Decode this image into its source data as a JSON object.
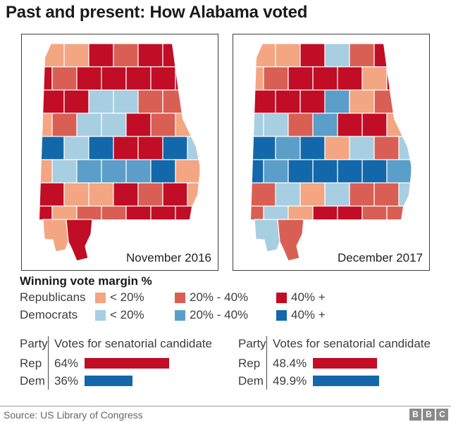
{
  "title": "Past and present: How Alabama voted",
  "palette": {
    "R1": "#f4a582",
    "R2": "#d95f54",
    "R3": "#c10d25",
    "D1": "#a8cee2",
    "D2": "#5b9ec9",
    "D3": "#1268ab"
  },
  "maps": [
    {
      "label": "November 2016",
      "mobile": "R1",
      "baldwin": "R3",
      "grid": [
        [
          "R1",
          "R1",
          "R3",
          "R2",
          "R3",
          "R3",
          "R3"
        ],
        [
          "R3",
          "R2",
          "R3",
          "R3",
          "R3",
          "R3",
          "R3"
        ],
        [
          "R3",
          "R3",
          "D1",
          "D1",
          "R2",
          "R2",
          "R3"
        ],
        [
          "R1",
          "R2",
          "D1",
          "D1",
          "R3",
          "R2",
          "R1"
        ],
        [
          "D3",
          "D1",
          "D3",
          "R3",
          "R3",
          "D3",
          "D1"
        ],
        [
          "R1",
          "D1",
          "D2",
          "D2",
          "D2",
          "D3",
          "R1"
        ],
        [
          "R3",
          "R1",
          "R1",
          "R3",
          "R2",
          "R3",
          "R1"
        ],
        [
          "R3",
          "R1",
          "R2",
          "R2",
          "R3",
          "R3",
          "R3"
        ]
      ]
    },
    {
      "label": "December 2017",
      "mobile": "D1",
      "baldwin": "R2",
      "grid": [
        [
          "R1",
          "R1",
          "R3",
          "D1",
          "R2",
          "R3",
          "R3"
        ],
        [
          "R1",
          "R2",
          "R3",
          "R3",
          "R3",
          "R1",
          "R3"
        ],
        [
          "R3",
          "R3",
          "R3",
          "D2",
          "R1",
          "R2",
          "R3"
        ],
        [
          "D1",
          "D1",
          "R2",
          "D2",
          "R3",
          "R3",
          "R1"
        ],
        [
          "D3",
          "D2",
          "D3",
          "R1",
          "D1",
          "R2",
          "D1"
        ],
        [
          "D3",
          "D2",
          "D3",
          "D3",
          "D3",
          "D3",
          "D2"
        ],
        [
          "R2",
          "D1",
          "R1",
          "D1",
          "R2",
          "R2",
          "D1"
        ],
        [
          "R2",
          "D1",
          "R1",
          "R3",
          "R3",
          "R2",
          "R2"
        ]
      ]
    }
  ],
  "legend": {
    "title": "Winning vote margin %",
    "rows": [
      {
        "party": "Republicans",
        "items": [
          {
            "code": "R1",
            "label": "< 20%"
          },
          {
            "code": "R2",
            "label": "20% - 40%"
          },
          {
            "code": "R3",
            "label": "40% +"
          }
        ]
      },
      {
        "party": "Democrats",
        "items": [
          {
            "code": "D1",
            "label": "< 20%"
          },
          {
            "code": "D2",
            "label": "20% - 40%"
          },
          {
            "code": "D3",
            "label": "40% +"
          }
        ]
      }
    ]
  },
  "tables": [
    {
      "header_party": "Party",
      "header_votes": "Votes for senatorial candidate",
      "rows": [
        {
          "party": "Rep",
          "value": "64%",
          "pct": 64,
          "color": "#c10d25"
        },
        {
          "party": "Dem",
          "value": "36%",
          "pct": 36,
          "color": "#1268ab"
        }
      ]
    },
    {
      "header_party": "Party",
      "header_votes": "Votes for senatorial candidate",
      "rows": [
        {
          "party": "Rep",
          "value": "48.4%",
          "pct": 48.4,
          "color": "#c10d25"
        },
        {
          "party": "Dem",
          "value": "49.9%",
          "pct": 49.9,
          "color": "#1268ab"
        }
      ]
    }
  ],
  "chart_data": [
    {
      "type": "bar",
      "orientation": "horizontal",
      "title": "Votes for senatorial candidate — November 2016",
      "categories": [
        "Rep",
        "Dem"
      ],
      "values": [
        64,
        36
      ],
      "value_labels": [
        "64%",
        "36%"
      ],
      "colors": [
        "#c10d25",
        "#1268ab"
      ],
      "xlim": [
        0,
        100
      ]
    },
    {
      "type": "bar",
      "orientation": "horizontal",
      "title": "Votes for senatorial candidate — December 2017",
      "categories": [
        "Rep",
        "Dem"
      ],
      "values": [
        48.4,
        49.9
      ],
      "value_labels": [
        "48.4%",
        "49.9%"
      ],
      "colors": [
        "#c10d25",
        "#1268ab"
      ],
      "xlim": [
        0,
        100
      ]
    },
    {
      "type": "heatmap",
      "subtype": "choropleth",
      "title": "November 2016",
      "legend_title": "Winning vote margin %",
      "legend_classes": {
        "R1": "Republicans < 20%",
        "R2": "Republicans 20% - 40%",
        "R3": "Republicans 40% +",
        "D1": "Democrats < 20%",
        "D2": "Democrats 20% - 40%",
        "D3": "Democrats 40% +"
      },
      "note": "Alabama county-level winning margins; grid approximation stored in maps.0.grid"
    },
    {
      "type": "heatmap",
      "subtype": "choropleth",
      "title": "December 2017",
      "legend_title": "Winning vote margin %",
      "legend_classes": {
        "R1": "Republicans < 20%",
        "R2": "Republicans 20% - 40%",
        "R3": "Republicans 40% +",
        "D1": "Democrats < 20%",
        "D2": "Democrats 20% - 40%",
        "D3": "Democrats 40% +"
      },
      "note": "Alabama county-level winning margins; grid approximation stored in maps.1.grid"
    }
  ],
  "footer": {
    "source": "Source: US Library of Congress",
    "logo_letters": [
      "B",
      "B",
      "C"
    ]
  }
}
